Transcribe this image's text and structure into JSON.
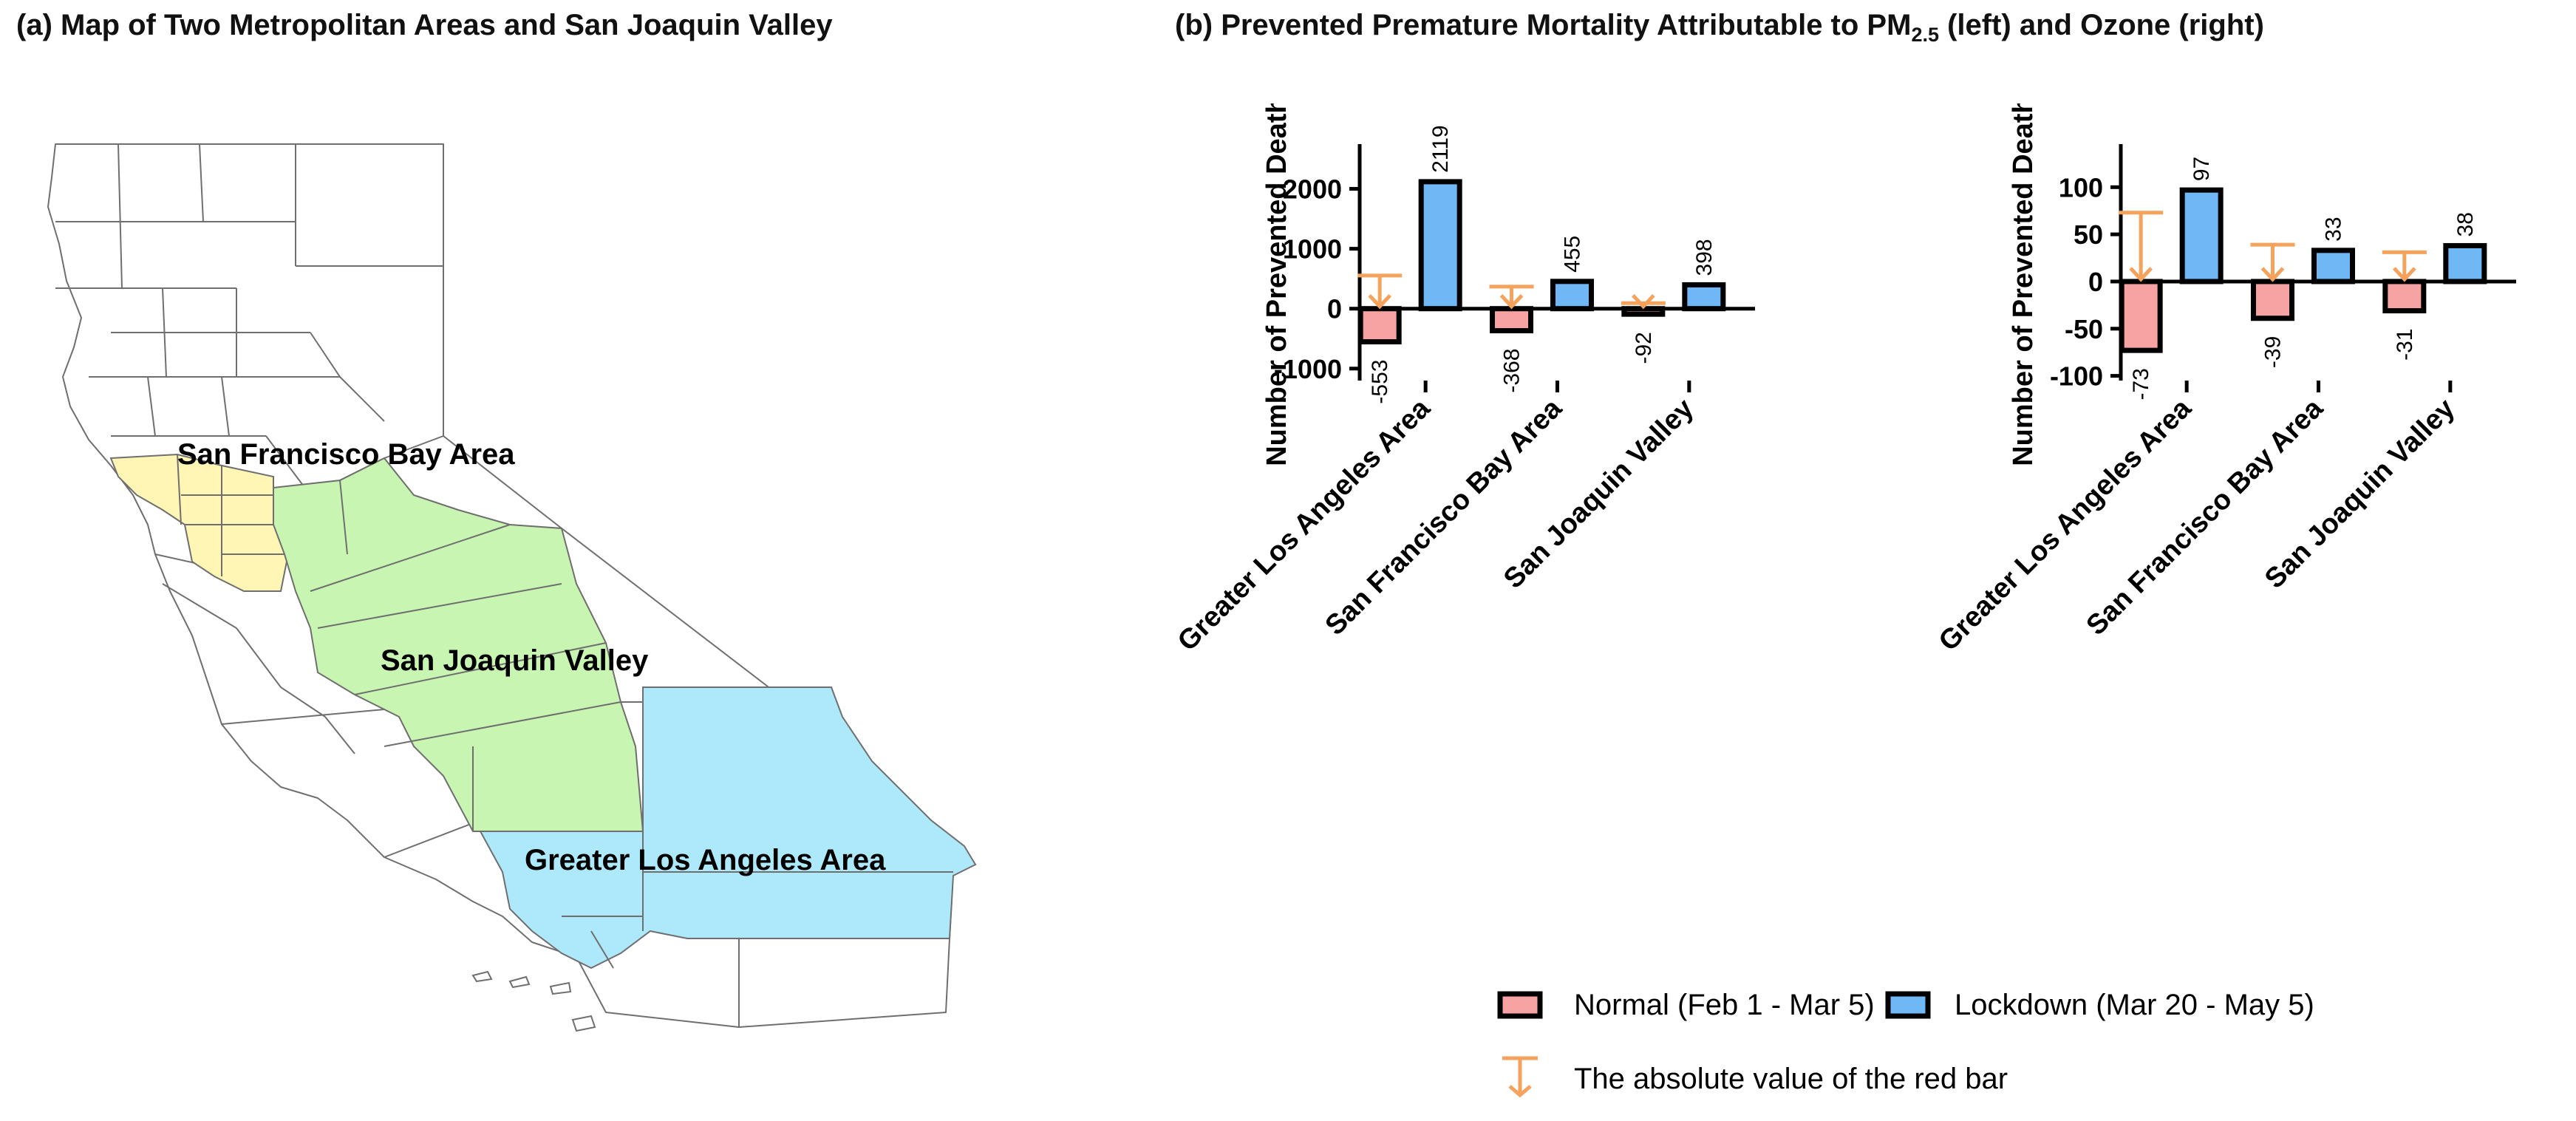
{
  "map": {
    "title": "(a) Map of Two Metropolitan Areas and San Joaquin Valley",
    "regions": [
      {
        "name": "San Francisco Bay Area",
        "color": "#fff5b5"
      },
      {
        "name": "San Joaquin Valley",
        "color": "#c9f5b3"
      },
      {
        "name": "Greater Los Angeles Area",
        "color": "#aee9fb"
      }
    ]
  },
  "chart_title": {
    "prefix": "(b) Prevented Premature Mortality Attributable to PM",
    "subscript": "2.5",
    "suffix": " (left) and Ozone (right)"
  },
  "colors": {
    "normal": "#f7a3a3",
    "lockdown": "#6fb8f5",
    "arrow": "#f5a25d",
    "outline": "#000000"
  },
  "legend": {
    "normal": "Normal (Feb 1 - Mar 5)",
    "lockdown": "Lockdown (Mar 20 - May 5)",
    "arrow": "The absolute value of the red bar"
  },
  "chart_data": [
    {
      "type": "bar",
      "title": "PM2.5",
      "ylabel": "Number of Prevented Deaths",
      "ylim": [
        -1200,
        2500
      ],
      "yticks": [
        -1000,
        0,
        1000,
        2000
      ],
      "categories": [
        "Greater Los Angeles Area",
        "San Francisco Bay Area",
        "San Joaquin Valley"
      ],
      "series": [
        {
          "name": "Normal (Feb 1 - Mar 5)",
          "values": [
            -553,
            -368,
            -92
          ]
        },
        {
          "name": "Lockdown (Mar 20 - May 5)",
          "values": [
            2119,
            455,
            398
          ]
        }
      ]
    },
    {
      "type": "bar",
      "title": "Ozone",
      "ylabel": "Number of Prevented Deaths",
      "ylim": [
        -105,
        130
      ],
      "yticks": [
        -100,
        -50,
        0,
        50,
        100
      ],
      "categories": [
        "Greater Los Angeles Area",
        "San Francisco Bay Area",
        "San Joaquin Valley"
      ],
      "series": [
        {
          "name": "Normal (Feb 1 - Mar 5)",
          "values": [
            -73,
            -39,
            -31
          ]
        },
        {
          "name": "Lockdown (Mar 20 - May 5)",
          "values": [
            97,
            33,
            38
          ]
        }
      ]
    }
  ]
}
